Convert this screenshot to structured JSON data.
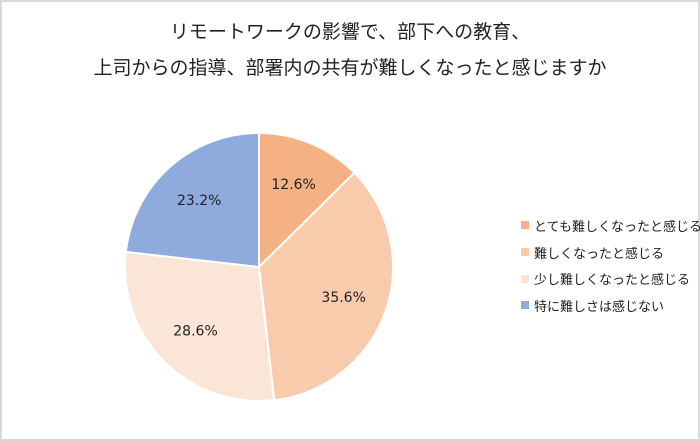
{
  "chart_data": {
    "type": "pie",
    "title": "リモートワークの影響で、部下への教育、上司からの指導、部署内の共有が難しくなったと感じますか",
    "title_lines": [
      "リモートワークの影響で、部下への教育、",
      "上司からの指導、部署内の共有が難しくなったと感じますか"
    ],
    "categories": [
      "とても難しくなったと感じる",
      "難しくなったと感じる",
      "少し難しくなったと感じる",
      "特に難しさは感じない"
    ],
    "values": [
      12.6,
      35.6,
      28.6,
      23.2
    ],
    "labels": [
      "12.6%",
      "35.6%",
      "28.6%",
      "23.2%"
    ],
    "colors": [
      "#f4b183",
      "#f8cbad",
      "#fbe5d6",
      "#8faadc"
    ],
    "start_angle": "12 o'clock",
    "direction": "clockwise",
    "legend_position": "right"
  }
}
